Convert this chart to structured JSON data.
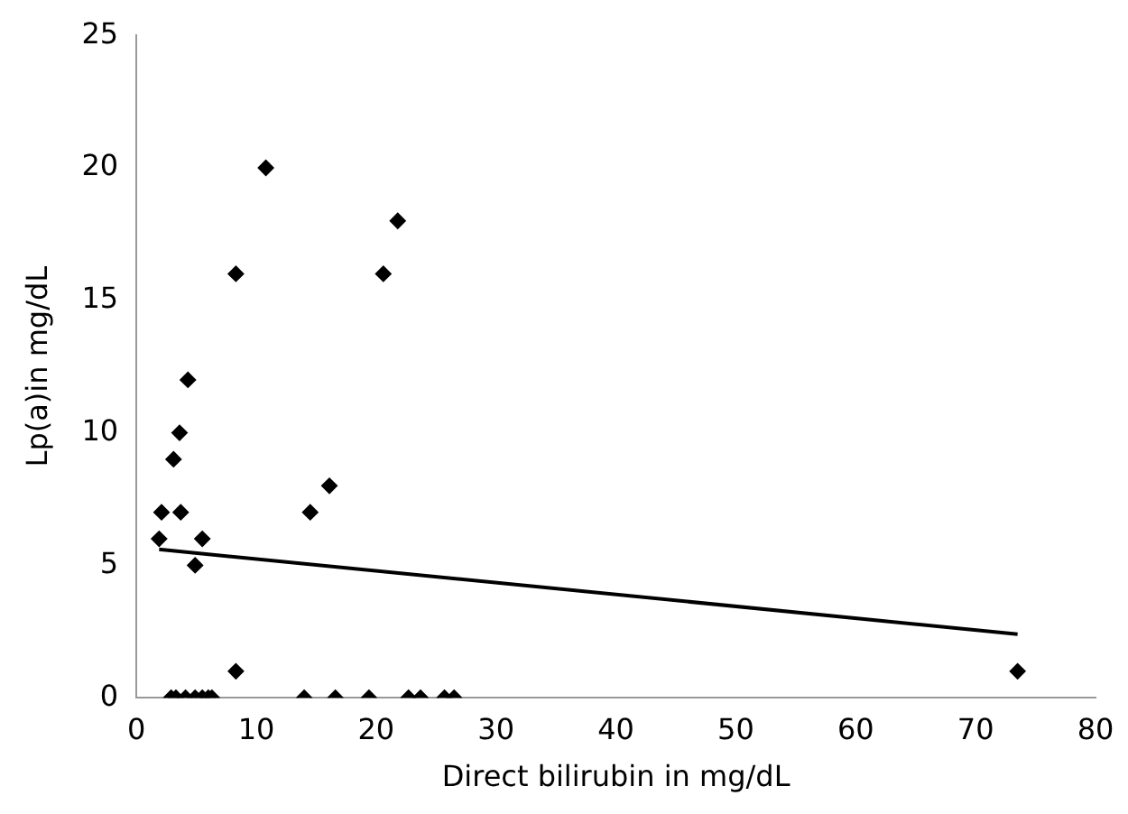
{
  "chart_data": {
    "type": "scatter",
    "xlabel": "Direct bilirubin in mg/dL",
    "ylabel": "Lp(a)in mg/dL",
    "xlim": [
      0,
      80
    ],
    "xticks": [
      0,
      10,
      20,
      30,
      40,
      50,
      60,
      70,
      80
    ],
    "ylim": [
      0,
      25
    ],
    "yticks": [
      0,
      5,
      10,
      15,
      20,
      25
    ],
    "grid": false,
    "legend": false,
    "marker": "diamond",
    "series": [
      {
        "type": "scatter",
        "color": "#000000",
        "x": [
          1.9,
          2.1,
          3.1,
          3.6,
          4.3,
          3.7,
          4.9,
          5.5,
          8.3,
          8.3,
          10.8,
          14.5,
          16.1,
          20.6,
          21.8,
          73.5,
          2.9,
          3.3,
          4.1,
          4.9,
          5.5,
          6.0,
          6.3,
          14.0,
          16.6,
          19.4,
          22.7,
          23.7,
          25.7,
          26.5
        ],
        "values": [
          6,
          7,
          9,
          10,
          12,
          7,
          5,
          6,
          1,
          16,
          20,
          7,
          8,
          16,
          18,
          1,
          0,
          0,
          0,
          0,
          0,
          0,
          0,
          0,
          0,
          0,
          0,
          0,
          0,
          0
        ]
      },
      {
        "type": "line",
        "marker": "none",
        "color": "#000000",
        "x": [
          1.9,
          73.5
        ],
        "values": [
          5.6,
          2.4
        ]
      }
    ]
  }
}
